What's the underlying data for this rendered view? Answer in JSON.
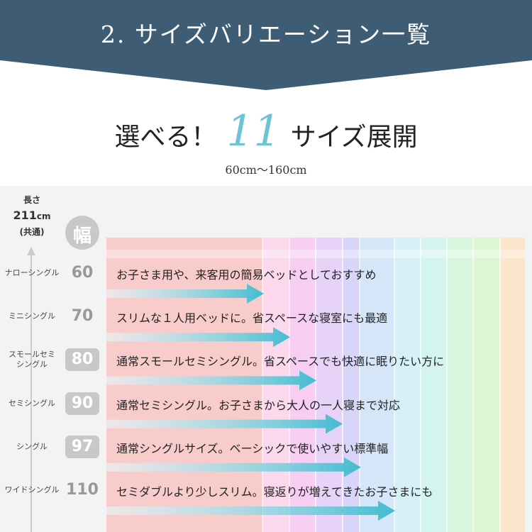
{
  "header": {
    "title": "2. サイズバリエーション一覧"
  },
  "headline": {
    "lead": "選べる！",
    "count": "11",
    "tail": "サイズ展開"
  },
  "range": "60cm〜160cm",
  "length": {
    "label": "長さ",
    "value": "211",
    "unit": "cm",
    "note": "(共通)"
  },
  "width_label": "幅",
  "rows": [
    {
      "name": "ナローシングル",
      "width": 60,
      "description": "お子さま用や、来客用の簡易ベッドとしておすすめ"
    },
    {
      "name": "ミニシングル",
      "width": 70,
      "description": "スリムな１人用ベッドに。省スペースな寝室にも最適"
    },
    {
      "name": "スモールセミ\nシングル",
      "width": 80,
      "description": "通常スモールセミシングル。省スペースでも快適に眠りたい方に"
    },
    {
      "name": "セミシングル",
      "width": 90,
      "description": "通常セミシングル。お子さまから大人の一人寝まで対応"
    },
    {
      "name": "シングル",
      "width": 97,
      "description": "通常シングルサイズ。ベーシックで使いやすい標準幅"
    },
    {
      "name": "ワイドシングル",
      "width": 110,
      "description": "セミダブルより少しスリム。寝返りが増えてきたお子さまにも"
    }
  ]
}
